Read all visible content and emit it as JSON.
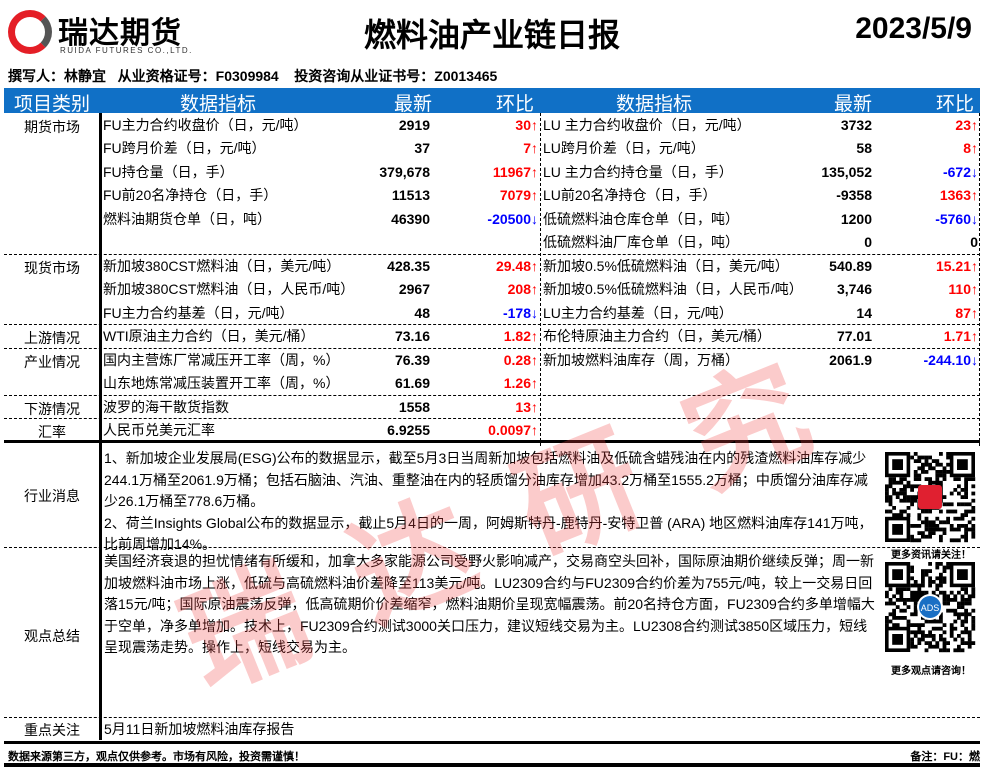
{
  "header": {
    "logo_cn": "瑞达期货",
    "logo_en": "RUIDA FUTURES CO.,LTD.",
    "title": "燃料油产业链日报",
    "date": "2023/5/9",
    "authors": "撰写人：林静宜   从业资格证号：F0309984    投资咨询从业证书号：Z0013465"
  },
  "columns": {
    "category": "项目类别",
    "indicator": "数据指标",
    "latest": "最新",
    "change": "环比",
    "indicator2": "数据指标",
    "latest2": "最新",
    "change2": "环比"
  },
  "colors": {
    "header_bg": "#1070c6",
    "up": "#ff0000",
    "down": "#0000ff"
  },
  "sections": [
    {
      "category": "期货市场",
      "rows": [
        {
          "l": {
            "name": "FU主力合约收盘价（日，元/吨）",
            "value": "2919",
            "change": "30↑",
            "dir": "up"
          },
          "r": {
            "name": "LU 主力合约收盘价（日，元/吨）",
            "value": "3732",
            "change": "23↑",
            "dir": "up"
          }
        },
        {
          "l": {
            "name": "FU跨月价差（日，元/吨）",
            "value": "37",
            "change": "7↑",
            "dir": "up"
          },
          "r": {
            "name": "LU跨月价差（日，元/吨）",
            "value": "58",
            "change": "8↑",
            "dir": "up"
          }
        },
        {
          "l": {
            "name": "FU持仓量（日，手）",
            "value": "379,678",
            "change": "11967↑",
            "dir": "up"
          },
          "r": {
            "name": "LU 主力合约持仓量（日，手）",
            "value": "135,052",
            "change": "-672↓",
            "dir": "down"
          }
        },
        {
          "l": {
            "name": "FU前20名净持仓（日，手）",
            "value": "11513",
            "change": "7079↑",
            "dir": "up"
          },
          "r": {
            "name": "LU前20名净持仓（日，手）",
            "value": "-9358",
            "change": "1363↑",
            "dir": "up"
          }
        },
        {
          "l": {
            "name": "燃料油期货仓单（日，吨）",
            "value": "46390",
            "change": "-20500↓",
            "dir": "down"
          },
          "r": {
            "name": "低硫燃料油仓库仓单（日，吨）",
            "value": "1200",
            "change": "-5760↓",
            "dir": "down"
          }
        },
        {
          "l": {
            "name": "",
            "value": "",
            "change": "",
            "dir": "flat"
          },
          "r": {
            "name": "低硫燃料油厂库仓单（日，吨）",
            "value": "0",
            "change": "0",
            "dir": "flat"
          }
        }
      ]
    },
    {
      "category": "现货市场",
      "rows": [
        {
          "l": {
            "name": "新加坡380CST燃料油（日，美元/吨）",
            "value": "428.35",
            "change": "29.48↑",
            "dir": "up"
          },
          "r": {
            "name": "新加坡0.5%低硫燃料油（日，美元/吨）",
            "value": "540.89",
            "change": "15.21↑",
            "dir": "up"
          }
        },
        {
          "l": {
            "name": "新加坡380CST燃料油（日，人民币/吨）",
            "value": "2967",
            "change": "208↑",
            "dir": "up"
          },
          "r": {
            "name": "新加坡0.5%低硫燃料油（日，人民币/吨）",
            "value": "3,746",
            "change": "110↑",
            "dir": "up"
          }
        },
        {
          "l": {
            "name": "FU主力合约基差（日，元/吨）",
            "value": "48",
            "change": "-178↓",
            "dir": "down"
          },
          "r": {
            "name": "LU主力合约基差（日，元/吨）",
            "value": "14",
            "change": "87↑",
            "dir": "up"
          }
        }
      ]
    },
    {
      "category": "上游情况",
      "rows": [
        {
          "l": {
            "name": "WTI原油主力合约（日，美元/桶）",
            "value": "73.16",
            "change": "1.82↑",
            "dir": "up"
          },
          "r": {
            "name": "布伦特原油主力合约（日，美元/桶）",
            "value": "77.01",
            "change": "1.71↑",
            "dir": "up"
          }
        }
      ]
    },
    {
      "category": "产业情况",
      "rows": [
        {
          "l": {
            "name": "国内主营炼厂常减压开工率（周，%）",
            "value": "76.39",
            "change": "0.28↑",
            "dir": "up"
          },
          "r": {
            "name": "新加坡燃料油库存（周，万桶）",
            "value": "2061.9",
            "change": "-244.10↓",
            "dir": "down"
          }
        },
        {
          "l": {
            "name": "山东地炼常减压装置开工率（周，%）",
            "value": "61.69",
            "change": "1.26↑",
            "dir": "up"
          },
          "r": {
            "name": "",
            "value": "",
            "change": "",
            "dir": "flat"
          }
        }
      ]
    },
    {
      "category": "下游情况",
      "rows": [
        {
          "l": {
            "name": "波罗的海干散货指数",
            "value": "1558",
            "change": "13↑",
            "dir": "up"
          },
          "r": {
            "name": "",
            "value": "",
            "change": "",
            "dir": "flat"
          }
        }
      ]
    },
    {
      "category": "汇率",
      "rows": [
        {
          "l": {
            "name": "人民币兑美元汇率",
            "value": "6.9255",
            "change": "0.0097↑",
            "dir": "up"
          },
          "r": {
            "name": "",
            "value": "",
            "change": "",
            "dir": "flat"
          }
        }
      ]
    }
  ],
  "news": {
    "category": "行业消息",
    "text1": "1、新加坡企业发展局(ESG)公布的数据显示，截至5月3日当周新加坡包括燃料油及低硫含蜡残油在内的残渣燃料油库存减少244.1万桶至2061.9万桶；包括石脑油、汽油、重整油在内的轻质馏分油库存增加43.2万桶至1555.2万桶；中质馏分油库存减少26.1万桶至778.6万桶。",
    "text2": "2、荷兰Insights Global公布的数据显示，截止5月4日的一周，阿姆斯特丹-鹿特丹-安特卫普 (ARA) 地区燃料油库存141万吨，比前周增加14%。"
  },
  "view": {
    "category": "观点总结",
    "text": "美国经济衰退的担忧情绪有所缓和，加拿大多家能源公司受野火影响减产，交易商空头回补，国际原油期价继续反弹；周一新加坡燃料油市场上涨，低硫与高硫燃料油价差降至113美元/吨。LU2309合约与FU2309合约价差为755元/吨，较上一交易日回落15元/吨；国际原油震荡反弹，低高硫期价价差缩窄，燃料油期价呈现宽幅震荡。前20名持仓方面，FU2309合约多单增幅大于空单，净多单增加。技术上，FU2309合约测试3000关口压力，建议短线交易为主。LU2308合约测试3850区域压力，短线呈现震荡走势。操作上，短线交易为主。"
  },
  "focus": {
    "category": "重点关注",
    "text": "5月11日新加坡燃料油库存报告"
  },
  "qr": {
    "caption1": "更多资讯请关注！",
    "caption2": "更多观点请咨询！",
    "badge2": "ADS"
  },
  "footer": {
    "left": "数据来源第三方，观点仅供参考。市场有风险，投资需谨慎！",
    "right": "备注：FU：燃"
  },
  "watermark": "瑞达研究"
}
